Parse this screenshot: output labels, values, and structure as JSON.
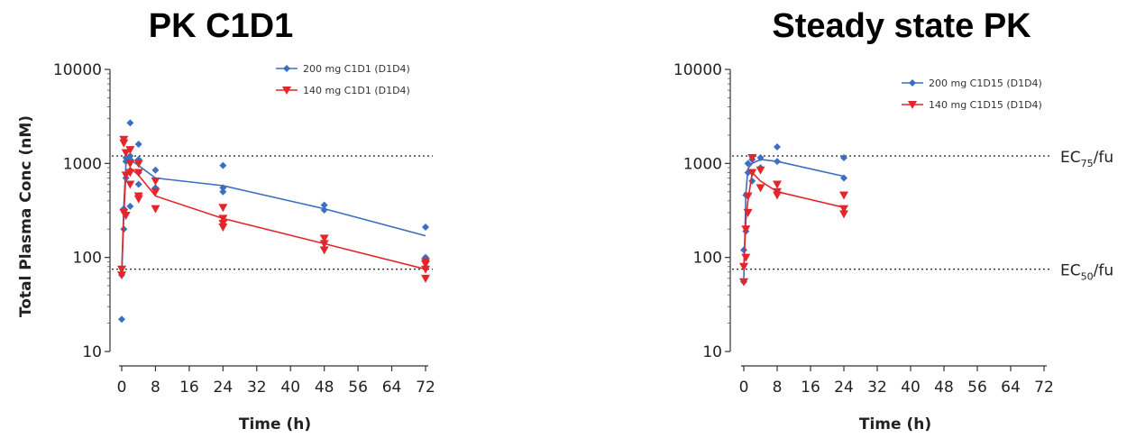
{
  "chart_data": [
    {
      "type": "scatter",
      "title": "PK C1D1",
      "xlabel": "Time (h)",
      "ylabel": "Total Plasma Conc (nM)",
      "yscale": "log",
      "ylim": [
        10,
        10000
      ],
      "xlim": [
        0,
        72
      ],
      "x_ticks": [
        "0",
        "8",
        "16",
        "24",
        "32",
        "40",
        "48",
        "56",
        "64",
        "72"
      ],
      "y_ticks": [
        "10",
        "100",
        "1000",
        "10000"
      ],
      "reference_lines": [
        {
          "y": 1200,
          "style": "dotted"
        },
        {
          "y": 75,
          "style": "dotted"
        }
      ],
      "legend_position": "top-right",
      "series": [
        {
          "name": "200 mg C1D1 (D1D4)",
          "color": "#3b6fc1",
          "marker": "diamond",
          "mean_line": {
            "x": [
              0,
              0.5,
              1,
              2,
              4,
              8,
              24,
              48,
              72
            ],
            "y": [
              70,
              350,
              1000,
              1100,
              950,
              700,
              580,
              330,
              170
            ]
          },
          "points": [
            [
              0,
              22
            ],
            [
              0,
              65
            ],
            [
              0.5,
              200
            ],
            [
              0.5,
              330
            ],
            [
              1,
              1050
            ],
            [
              1,
              1150
            ],
            [
              1,
              700
            ],
            [
              2,
              2700
            ],
            [
              2,
              1100
            ],
            [
              2,
              1200
            ],
            [
              2,
              350
            ],
            [
              4,
              1600
            ],
            [
              4,
              1100
            ],
            [
              4,
              800
            ],
            [
              4,
              600
            ],
            [
              8,
              850
            ],
            [
              8,
              550
            ],
            [
              24,
              950
            ],
            [
              24,
              500
            ],
            [
              24,
              550
            ],
            [
              48,
              360
            ],
            [
              48,
              320
            ],
            [
              72,
              210
            ],
            [
              72,
              100
            ],
            [
              72,
              95
            ]
          ]
        },
        {
          "name": "140 mg C1D1 (D1D4)",
          "color": "#e3262b",
          "marker": "triangle-down",
          "mean_line": {
            "x": [
              0,
              0.5,
              1,
              2,
              4,
              8,
              24,
              48,
              72
            ],
            "y": [
              65,
              280,
              800,
              900,
              750,
              450,
              260,
              140,
              75
            ]
          },
          "points": [
            [
              0,
              75
            ],
            [
              0,
              65
            ],
            [
              0.5,
              1650
            ],
            [
              0.5,
              1800
            ],
            [
              0.5,
              300
            ],
            [
              1,
              750
            ],
            [
              1,
              1300
            ],
            [
              1,
              280
            ],
            [
              2,
              1400
            ],
            [
              2,
              1000
            ],
            [
              2,
              800
            ],
            [
              2,
              600
            ],
            [
              4,
              1000
            ],
            [
              4,
              800
            ],
            [
              4,
              450
            ],
            [
              4,
              420
            ],
            [
              8,
              650
            ],
            [
              8,
              500
            ],
            [
              8,
              330
            ],
            [
              24,
              340
            ],
            [
              24,
              260
            ],
            [
              24,
              230
            ],
            [
              24,
              210
            ],
            [
              48,
              160
            ],
            [
              48,
              140
            ],
            [
              48,
              120
            ],
            [
              72,
              90
            ],
            [
              72,
              85
            ],
            [
              72,
              75
            ],
            [
              72,
              60
            ]
          ]
        }
      ]
    },
    {
      "type": "scatter",
      "title": "Steady state PK",
      "xlabel": "Time (h)",
      "ylabel": "",
      "yscale": "log",
      "ylim": [
        10,
        10000
      ],
      "xlim": [
        0,
        72
      ],
      "x_ticks": [
        "0",
        "8",
        "16",
        "24",
        "32",
        "40",
        "48",
        "56",
        "64",
        "72"
      ],
      "y_ticks": [
        "10",
        "100",
        "1000",
        "10000"
      ],
      "reference_lines": [
        {
          "y": 1200,
          "style": "dotted",
          "label_main": "EC",
          "label_sub": "75",
          "label_tail": "/fu"
        },
        {
          "y": 75,
          "style": "dotted",
          "label_main": "EC",
          "label_sub": "50",
          "label_tail": "/fu"
        }
      ],
      "legend_position": "top-right",
      "series": [
        {
          "name": "200 mg C1D15 (D1D4)",
          "color": "#3b6fc1",
          "marker": "diamond",
          "mean_line": {
            "x": [
              0,
              0.5,
              1,
              2,
              4,
              8,
              24
            ],
            "y": [
              60,
              480,
              880,
              1000,
              1100,
              1050,
              730
            ]
          },
          "points": [
            [
              0,
              55
            ],
            [
              0,
              120
            ],
            [
              0.5,
              190
            ],
            [
              0.5,
              460
            ],
            [
              1,
              1000
            ],
            [
              1,
              800
            ],
            [
              2,
              1100
            ],
            [
              2,
              650
            ],
            [
              4,
              1150
            ],
            [
              4,
              900
            ],
            [
              8,
              1500
            ],
            [
              8,
              1050
            ],
            [
              24,
              1150
            ],
            [
              24,
              700
            ]
          ]
        },
        {
          "name": "140 mg C1D15 (D1D4)",
          "color": "#e3262b",
          "marker": "triangle-down",
          "mean_line": {
            "x": [
              0,
              0.5,
              1,
              2,
              4,
              8,
              24
            ],
            "y": [
              80,
              250,
              400,
              800,
              650,
              500,
              340
            ]
          },
          "points": [
            [
              0,
              55
            ],
            [
              0,
              80
            ],
            [
              0.5,
              100
            ],
            [
              0.5,
              200
            ],
            [
              1,
              450
            ],
            [
              1,
              300
            ],
            [
              2,
              1150
            ],
            [
              2,
              800
            ],
            [
              4,
              850
            ],
            [
              4,
              550
            ],
            [
              8,
              600
            ],
            [
              8,
              500
            ],
            [
              8,
              460
            ],
            [
              24,
              460
            ],
            [
              24,
              330
            ],
            [
              24,
              290
            ]
          ]
        }
      ]
    }
  ]
}
